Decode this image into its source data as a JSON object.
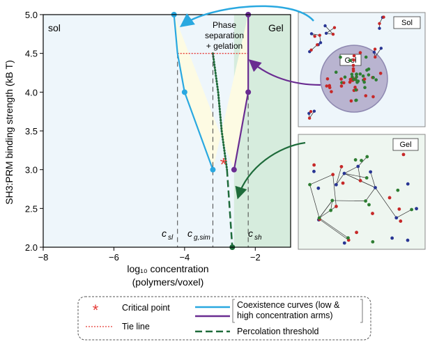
{
  "chart_data": {
    "type": "line",
    "xlabel": "log₁₀ concentration",
    "xlabel_sub": "(polymers/voxel)",
    "ylabel": "SH3:PRM binding strength (kB T)",
    "xlim": [
      -8,
      -1
    ],
    "ylim": [
      2.0,
      5.0
    ],
    "xticks": [
      -8,
      -6,
      -4,
      -2
    ],
    "yticks": [
      2.0,
      2.5,
      3.0,
      3.5,
      4.0,
      4.5,
      5.0
    ],
    "grid": false,
    "region_labels": {
      "sol": "sol",
      "gel": "Gel",
      "phase_sep_1": "Phase",
      "phase_sep_2": "separation",
      "phase_sep_3": "+ gelation"
    },
    "series": [
      {
        "name": "Coexistence curves (low & high concentration arms)",
        "role": "low-concentration arm",
        "color": "#29a8e0",
        "x": [
          -4.3,
          -4.2,
          -4.0,
          -3.2
        ],
        "y": [
          5.0,
          4.5,
          4.0,
          3.0
        ]
      },
      {
        "name": "Coexistence curves (low & high concentration arms)",
        "role": "high-concentration arm",
        "color": "#6a2c91",
        "x": [
          -2.6,
          -2.2,
          -2.2,
          -2.2
        ],
        "y": [
          3.0,
          4.0,
          4.5,
          5.0
        ]
      },
      {
        "name": "Percolation threshold",
        "color": "#1e6b3a",
        "x": [
          -3.2,
          -3.05,
          -2.95,
          -2.8,
          -2.65
        ],
        "y": [
          4.5,
          4.0,
          3.5,
          3.0,
          2.0
        ]
      }
    ],
    "tie_line": {
      "x": [
        -4.2,
        -2.2
      ],
      "y": [
        4.5,
        4.5
      ],
      "color": "#e53935"
    },
    "critical_point": {
      "x": -2.9,
      "y": 3.08,
      "color": "#e53935"
    },
    "markers": {
      "c_sl": {
        "x": -4.2,
        "label": "c",
        "sub": "sl"
      },
      "c_gsim": {
        "x": -3.2,
        "label": "c",
        "sub": "g,sim"
      },
      "c_sh": {
        "x": -2.2,
        "label": "c",
        "sub": "sh"
      }
    },
    "panels": {
      "top_label_1": "Sol",
      "top_label_2": "Gel",
      "bottom_label": "Gel"
    },
    "legend": {
      "critical": "Critical point",
      "tie": "Tie line",
      "coexist_1": "Coexistence curves (low &",
      "coexist_2": "high concentration arms)",
      "percolation": "Percolation threshold"
    },
    "colors": {
      "sol_bg": "#eef6fb",
      "yellow_bg": "#fdfbe3",
      "gel_bg": "#d6ecdd",
      "blue": "#29a8e0",
      "purple": "#6a2c91",
      "green": "#1e6b3a",
      "red": "#e53935"
    }
  }
}
